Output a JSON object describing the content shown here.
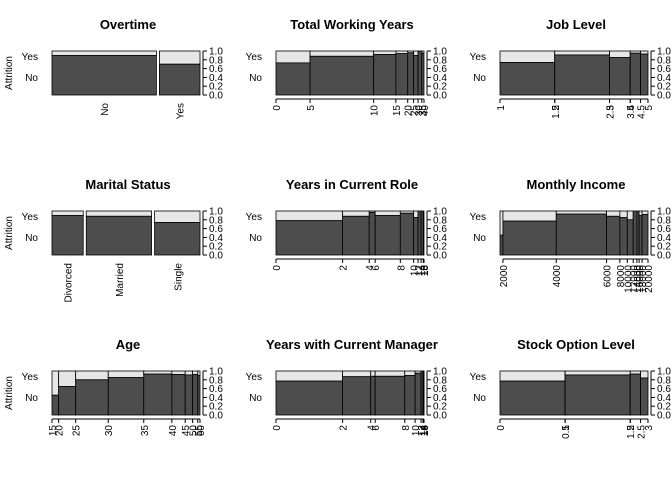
{
  "colors": {
    "no": "#4d4d4d",
    "yes": "#e6e6e6",
    "outline": "#000000",
    "background": "#ffffff"
  },
  "chart_data": [
    {
      "type": "spineplot",
      "title": "Overtime",
      "ylabel": "Attrition",
      "y_levels": [
        "No",
        "Yes"
      ],
      "xaxis": "categorical",
      "categories": [
        "No",
        "Yes"
      ],
      "widths": [
        0.72,
        0.28
      ],
      "no_fraction": [
        0.9,
        0.7
      ],
      "right_axis": [
        "0.0",
        "0.2",
        "0.4",
        "0.6",
        "0.8",
        "1.0"
      ]
    },
    {
      "type": "spineplot",
      "title": "Total Working Years",
      "y_levels": [
        "No",
        "Yes"
      ],
      "xaxis": "numeric",
      "breaks": [
        0,
        5,
        10,
        15,
        20,
        25,
        30,
        35,
        40
      ],
      "tick_labels": [
        "0",
        "5",
        "10",
        "15",
        "20",
        "25",
        "30",
        "35",
        "40"
      ],
      "breakpoints": [
        0,
        0.23,
        0.66,
        0.81,
        0.89,
        0.93,
        0.96,
        0.985,
        1
      ],
      "no_fraction": [
        0.73,
        0.88,
        0.92,
        0.94,
        0.96,
        0.9,
        1.0,
        0.95
      ],
      "right_axis": [
        "0.0",
        "0.2",
        "0.4",
        "0.6",
        "0.8",
        "1.0"
      ]
    },
    {
      "type": "spineplot",
      "title": "Job Level",
      "y_levels": [
        "No",
        "Yes"
      ],
      "xaxis": "numeric",
      "breaks": [
        1,
        1.5,
        2,
        2.5,
        3,
        3.5,
        4,
        4.5,
        5
      ],
      "tick_labels": [
        "1",
        "1.5",
        "2",
        "2.5",
        "3",
        "3.5",
        "4",
        "4.5",
        "5"
      ],
      "breakpoints": [
        0,
        0.37,
        0.37,
        0.74,
        0.74,
        0.88,
        0.88,
        0.95,
        1
      ],
      "no_fraction": [
        0.74,
        0.74,
        0.91,
        0.91,
        0.85,
        0.85,
        0.95,
        0.93
      ],
      "right_axis": [
        "0.0",
        "0.2",
        "0.4",
        "0.6",
        "0.8",
        "1.0"
      ]
    },
    {
      "type": "spineplot",
      "title": "Marital Status",
      "ylabel": "Attrition",
      "y_levels": [
        "No",
        "Yes"
      ],
      "xaxis": "categorical",
      "categories": [
        "Divorced",
        "Married",
        "Single"
      ],
      "widths": [
        0.22,
        0.46,
        0.32
      ],
      "no_fraction": [
        0.9,
        0.88,
        0.74
      ],
      "right_axis": [
        "0.0",
        "0.2",
        "0.4",
        "0.6",
        "0.8",
        "1.0"
      ]
    },
    {
      "type": "spineplot",
      "title": "Years in Current Role",
      "y_levels": [
        "No",
        "Yes"
      ],
      "xaxis": "numeric",
      "breaks": [
        0,
        2,
        4,
        6,
        8,
        10,
        12,
        14,
        16,
        18
      ],
      "tick_labels": [
        "0",
        "2",
        "4",
        "6",
        "8",
        "10",
        "12",
        "14",
        "16",
        "18"
      ],
      "breakpoints": [
        0,
        0.45,
        0.63,
        0.67,
        0.84,
        0.93,
        0.96,
        0.98,
        0.995,
        1
      ],
      "no_fraction": [
        0.78,
        0.88,
        0.97,
        0.9,
        0.95,
        0.85,
        1.0,
        1.0,
        1.0
      ],
      "right_axis": [
        "0.0",
        "0.2",
        "0.4",
        "0.6",
        "0.8",
        "1.0"
      ]
    },
    {
      "type": "spineplot",
      "title": "Monthly Income",
      "y_levels": [
        "No",
        "Yes"
      ],
      "xaxis": "numeric",
      "breaks": [
        1000,
        2000,
        4000,
        6000,
        8000,
        10000,
        12000,
        14000,
        16000,
        18000,
        20000
      ],
      "tick_labels": [
        "2000",
        "4000",
        "6000",
        "8000",
        "10000",
        "12000",
        "14000",
        "16000",
        "18000",
        "20000"
      ],
      "tick_values": [
        2000,
        4000,
        6000,
        8000,
        10000,
        12000,
        14000,
        16000,
        18000,
        20000
      ],
      "breakpoints": [
        0,
        0.02,
        0.38,
        0.72,
        0.81,
        0.86,
        0.9,
        0.925,
        0.94,
        0.96,
        1
      ],
      "no_fraction": [
        0.45,
        0.77,
        0.93,
        0.88,
        0.85,
        0.8,
        1.0,
        1.0,
        0.9,
        0.92
      ],
      "right_axis": [
        "0.0",
        "0.2",
        "0.4",
        "0.6",
        "0.8",
        "1.0"
      ]
    },
    {
      "type": "spineplot",
      "title": "Age",
      "ylabel": "Attrition",
      "y_levels": [
        "No",
        "Yes"
      ],
      "xaxis": "numeric",
      "breaks": [
        15,
        20,
        25,
        30,
        35,
        40,
        45,
        50,
        55,
        60
      ],
      "tick_labels": [
        "15",
        "20",
        "25",
        "30",
        "35",
        "40",
        "45",
        "50",
        "55",
        "60"
      ],
      "breakpoints": [
        0,
        0.045,
        0.16,
        0.38,
        0.62,
        0.81,
        0.9,
        0.95,
        0.985,
        1
      ],
      "no_fraction": [
        0.45,
        0.65,
        0.8,
        0.85,
        0.93,
        0.92,
        0.91,
        0.92,
        0.9
      ],
      "right_axis": [
        "0.0",
        "0.2",
        "0.4",
        "0.6",
        "0.8",
        "1.0"
      ]
    },
    {
      "type": "spineplot",
      "title": "Years with Current Manager",
      "y_levels": [
        "No",
        "Yes"
      ],
      "xaxis": "numeric",
      "breaks": [
        0,
        2,
        4,
        6,
        8,
        10,
        12,
        14,
        16,
        18
      ],
      "tick_labels": [
        "0",
        "2",
        "4",
        "6",
        "8",
        "10",
        "12",
        "14",
        "16",
        "18"
      ],
      "breakpoints": [
        0,
        0.45,
        0.64,
        0.67,
        0.87,
        0.94,
        0.98,
        0.993,
        0.998,
        1
      ],
      "no_fraction": [
        0.77,
        0.87,
        0.88,
        0.88,
        0.9,
        0.95,
        1.0,
        1.0,
        1.0
      ],
      "right_axis": [
        "0.0",
        "0.2",
        "0.4",
        "0.6",
        "0.8",
        "1.0"
      ]
    },
    {
      "type": "spineplot",
      "title": "Stock Option Level",
      "y_levels": [
        "No",
        "Yes"
      ],
      "xaxis": "numeric",
      "breaks": [
        0,
        0.5,
        1,
        1.5,
        2,
        2.5,
        3
      ],
      "tick_labels": [
        "0",
        "0.5",
        "1",
        "1.5",
        "2",
        "2.5",
        "3"
      ],
      "breakpoints": [
        0,
        0.44,
        0.44,
        0.88,
        0.88,
        0.95,
        1
      ],
      "no_fraction": [
        0.77,
        0.77,
        0.91,
        0.91,
        0.93,
        0.84
      ],
      "right_axis": [
        "0.0",
        "0.2",
        "0.4",
        "0.6",
        "0.8",
        "1.0"
      ]
    }
  ]
}
